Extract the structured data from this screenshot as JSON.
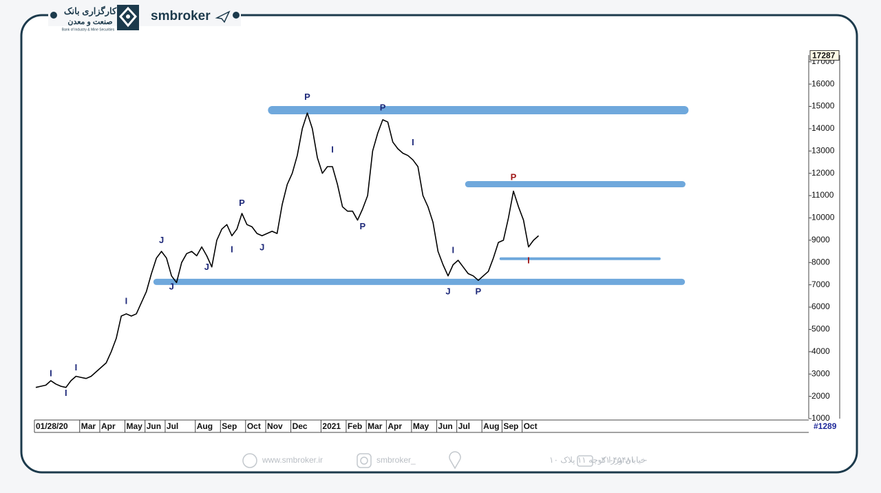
{
  "header": {
    "brand": "smbroker",
    "logo_title": "کارگزاری بانک",
    "logo_subtitle": "صنعت و معدن",
    "logo_caption": "Bank of Industry & Mine Securities"
  },
  "footer": {
    "website": "www.smbroker.ir",
    "instagram": "smbroker_",
    "address": "خیابان وزرا کوچه ۱۱ پلاک ۱۰",
    "phone": "۰۲۱-۴۵۴۸۱۰۰۰"
  },
  "chart_data": {
    "type": "line",
    "color": "#000000",
    "last_price": 17287,
    "bar_count": "#1289",
    "categories": [
      "01/28/20",
      null,
      null,
      null,
      null,
      null,
      null,
      null,
      null,
      "Mar",
      null,
      null,
      null,
      "Apr",
      null,
      null,
      null,
      null,
      "May",
      null,
      null,
      null,
      "Jun",
      null,
      null,
      null,
      "Jul",
      null,
      null,
      null,
      null,
      null,
      "Aug",
      null,
      null,
      null,
      null,
      "Sep",
      null,
      null,
      null,
      null,
      "Oct",
      null,
      null,
      null,
      "Nov",
      null,
      null,
      null,
      null,
      "Dec",
      null,
      null,
      null,
      null,
      null,
      "2021",
      null,
      null,
      null,
      null,
      "Feb",
      null,
      null,
      null,
      "Mar",
      null,
      null,
      null,
      "Apr",
      null,
      null,
      null,
      null,
      "May",
      null,
      null,
      null,
      null,
      "Jun",
      null,
      null,
      null,
      "Jul",
      null,
      null,
      null,
      null,
      "Aug",
      null,
      null,
      null,
      "Sep",
      null,
      null,
      null,
      "Oct",
      null,
      null,
      null,
      null,
      null,
      null,
      null,
      null,
      null,
      null,
      null,
      null,
      null,
      null,
      null,
      null,
      null,
      null,
      null,
      null,
      null,
      null,
      null,
      null,
      null,
      null,
      null,
      null,
      null,
      null,
      null,
      null,
      null,
      null,
      null,
      null,
      null,
      null,
      null,
      null,
      null,
      null,
      null,
      null,
      null,
      null,
      null,
      null,
      null,
      null,
      null,
      null,
      null,
      null,
      null,
      null
    ],
    "values": [
      2400,
      2450,
      2500,
      2700,
      2550,
      2450,
      2400,
      2700,
      2900,
      2850,
      2800,
      2900,
      3100,
      3300,
      3500,
      4000,
      4600,
      5600,
      5700,
      5600,
      5700,
      6200,
      6700,
      7500,
      8200,
      8500,
      8200,
      7400,
      7100,
      8000,
      8400,
      8500,
      8300,
      8700,
      8300,
      7800,
      9000,
      9500,
      9700,
      9200,
      9500,
      10200,
      9700,
      9600,
      9300,
      9200,
      9300,
      9400,
      9300,
      10600,
      11500,
      12000,
      12800,
      14000,
      14700,
      14000,
      12700,
      12000,
      12300,
      12300,
      11500,
      10500,
      10300,
      10300,
      9900,
      10400,
      11000,
      13000,
      13800,
      14400,
      14300,
      13400,
      13100,
      12900,
      12800,
      12600,
      12300,
      11000,
      10500,
      9800,
      8500,
      7900,
      7400,
      7900,
      8100,
      7800,
      7500,
      7400,
      7200,
      7400,
      7600,
      8200,
      8900,
      9000,
      10000,
      11200,
      10500,
      9900,
      8700,
      9000,
      9200,
      null,
      null,
      null,
      null,
      null,
      null,
      null,
      null,
      null,
      null,
      null,
      null,
      null,
      null,
      null,
      null,
      null,
      null,
      null,
      null,
      null,
      null,
      null,
      null,
      null,
      null,
      null,
      null,
      null,
      null,
      null,
      null,
      null,
      null,
      null,
      null,
      null,
      null,
      null,
      null,
      null,
      null,
      null,
      null,
      null,
      null,
      null,
      null,
      null,
      null,
      null,
      null,
      null
    ],
    "ylim": [
      1000,
      17300
    ],
    "yticks": [
      1000,
      2000,
      3000,
      4000,
      5000,
      6000,
      7000,
      8000,
      9000,
      10000,
      11000,
      12000,
      13000,
      14000,
      15000,
      16000,
      17000
    ],
    "levels": [
      {
        "value": 14830,
        "start": 47,
        "end": 129,
        "color": "#6fa8dc"
      },
      {
        "value": 11510,
        "start": 86,
        "end": 128.6,
        "color": "#6fa8dc"
      },
      {
        "value": 8170,
        "start": 92.5,
        "end": 124,
        "color": "#6fa8dc"
      },
      {
        "value": 7130,
        "start": 24,
        "end": 128.5,
        "color": "#6fa8dc"
      }
    ],
    "wave_labels": [
      {
        "label": "I",
        "index": 3,
        "value": 3000,
        "color": "#1f2a7a"
      },
      {
        "label": "I",
        "index": 6,
        "value": 2130,
        "color": "#1f2a7a"
      },
      {
        "label": "I",
        "index": 8,
        "value": 3270,
        "color": "#1f2a7a"
      },
      {
        "label": "I",
        "index": 18,
        "value": 6250,
        "color": "#1f2a7a"
      },
      {
        "label": "J",
        "index": 25,
        "value": 8980,
        "color": "#1f2a7a"
      },
      {
        "label": "J",
        "index": 27,
        "value": 6900,
        "color": "#1f2a7a"
      },
      {
        "label": "J",
        "index": 34,
        "value": 7780,
        "color": "#1f2a7a"
      },
      {
        "label": "I",
        "index": 39,
        "value": 8560,
        "color": "#1f2a7a"
      },
      {
        "label": "P",
        "index": 41,
        "value": 10640,
        "color": "#1f2a7a"
      },
      {
        "label": "J",
        "index": 45,
        "value": 8660,
        "color": "#1f2a7a"
      },
      {
        "label": "P",
        "index": 54,
        "value": 15400,
        "color": "#1f2a7a"
      },
      {
        "label": "I",
        "index": 59,
        "value": 13040,
        "color": "#1f2a7a"
      },
      {
        "label": "P",
        "index": 65,
        "value": 9600,
        "color": "#1f2a7a"
      },
      {
        "label": "P",
        "index": 69,
        "value": 14920,
        "color": "#1f2a7a"
      },
      {
        "label": "I",
        "index": 75,
        "value": 13360,
        "color": "#1f2a7a"
      },
      {
        "label": "J",
        "index": 82,
        "value": 6680,
        "color": "#1f2a7a"
      },
      {
        "label": "I",
        "index": 83,
        "value": 8530,
        "color": "#1f2a7a"
      },
      {
        "label": "P",
        "index": 88,
        "value": 6680,
        "color": "#1f2a7a"
      },
      {
        "label": "P",
        "index": 95,
        "value": 11800,
        "color": "#a01818"
      },
      {
        "label": "I",
        "index": 98,
        "value": 8070,
        "color": "#a01818"
      }
    ]
  }
}
